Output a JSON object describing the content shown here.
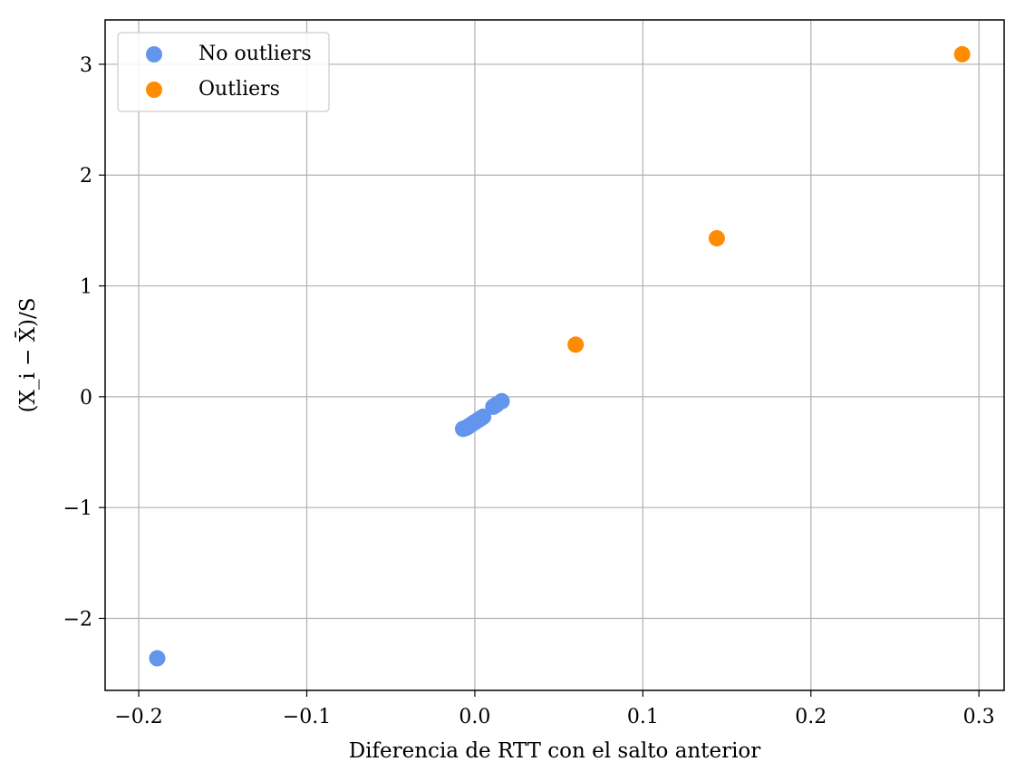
{
  "chart_data": {
    "type": "scatter",
    "title": "",
    "xlabel": "Diferencia de RTT con el salto anterior",
    "ylabel": "(X_i − X̄)/S",
    "xlim": [
      -0.22,
      0.315
    ],
    "ylim": [
      -2.65,
      3.4
    ],
    "grid": true,
    "legend_position": "top-left",
    "x_ticks": [
      -0.2,
      -0.1,
      0.0,
      0.1,
      0.2,
      0.3
    ],
    "x_tick_labels": [
      "−0.2",
      "−0.1",
      "0.0",
      "0.1",
      "0.2",
      "0.3"
    ],
    "y_ticks": [
      -2,
      -1,
      0,
      1,
      2,
      3
    ],
    "y_tick_labels": [
      "−2",
      "−1",
      "0",
      "1",
      "2",
      "3"
    ],
    "series": [
      {
        "name": "No outliers",
        "color": "#6495ED",
        "x": [
          -0.189,
          -0.007,
          -0.006,
          -0.005,
          -0.004,
          -0.003,
          -0.002,
          -0.001,
          0.0,
          0.001,
          0.002,
          0.003,
          0.004,
          0.005,
          0.011,
          0.012,
          0.013,
          0.016
        ],
        "y": [
          -2.36,
          -0.29,
          -0.285,
          -0.28,
          -0.27,
          -0.26,
          -0.25,
          -0.24,
          -0.23,
          -0.22,
          -0.21,
          -0.2,
          -0.19,
          -0.18,
          -0.09,
          -0.08,
          -0.07,
          -0.04
        ]
      },
      {
        "name": "Outliers",
        "color": "#FF8C00",
        "x": [
          0.06,
          0.144,
          0.29
        ],
        "y": [
          0.47,
          1.43,
          3.09
        ]
      }
    ]
  }
}
